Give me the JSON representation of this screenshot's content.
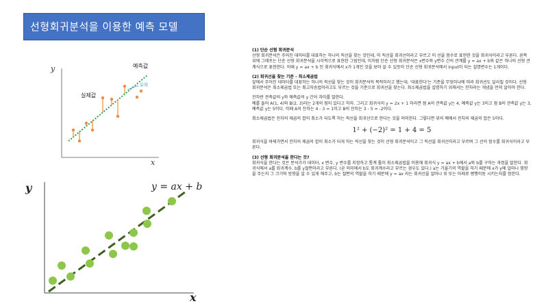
{
  "slide": {
    "title": "선형회귀분석을 이용한 예측 모델"
  },
  "fig1": {
    "y_label": "y",
    "x_label": "x",
    "predicted_label": "예측값",
    "actual_label": "실제값",
    "error_label": "오차",
    "colors": {
      "line": "#2ea043",
      "points": "#f08a3c",
      "error": "#3d9ad1",
      "axis": "#555555"
    }
  },
  "fig2": {
    "y_label": "y",
    "x_label": "x",
    "equation": "y = ax + b",
    "colors": {
      "line": "#3f5f1f",
      "points": "#8dc74a",
      "axis": "#444444"
    }
  },
  "text": {
    "s1_heading": "(1) 단순 선형 회귀분석",
    "s1_body": "선형 회귀분석은 주어진 데이터를 대표하는 하나의 직선을 찾는 것인데, 이 직선을 회귀선이라고 부르고 이 선을 함수로 표현한 것을 회귀식이라고 부른다. 왼쪽 위에 그래프는 단순 선형 회귀분석을 시각적으로 표현한 그림인데, 이처럼 단순 선형 회귀분석은 x변수와 y변수 간의 관계를 y = ax + b와 같은 하나의 선형 관계식으로 표현한다. 이때 y = ax + b 인 회귀식에서 x가 1개인 것을 보아 알 수 있듯이 단순 선형 회귀분석에서 input이 되는 설명변수는 1개이다.",
    "s2_heading": "(2) 회귀선을 찾는 기준 - 최소제곱법",
    "s2_body1": "앞에서 주어진 데이터를 대표하는 하나의 직선을 찾는 것이 회귀분석의 목적이라고 했는데, '대표한다'는 기준을 무엇이냐에 따라 회귀선도 달라질 것이다. 선형 회귀분석은 최소제곱법 또는 최고자승법이라고도 부르는 것을 기준으로 회귀선을 찾는다. 최소제곱법을 설명하기 위해서는 잔차라는 개념을 먼저 알아야 한다.",
    "s2_body2": "잔차란 관측값의 y와 예측값의 y 간의 차이를 말한다.",
    "s2_body3": "예를 들어 A(1, 4)와 B(2, 3)라는 2개의 점이 있다고 하자. 그리고 회귀식이 y = 2x + 1 이라면 점 A의 관측값 y는 4, 예측값 y는 3이고 점 B의 관측값 y는 3, 예측값 y는 5이다. 이때 A의 잔차는 4 - 3 = 1이고 B의 잔차는 3 - 5 = -2이다.",
    "s2_body4": "최소제곱법은 잔차의 제곱의 합이 최소가 되도록 하는 직선을 회귀선으로 한다는 것을 의미한다. 그렇다면 위의 예에서 잔차의 제곱의 합은 5이다.",
    "equation": "1² + (−2)² = 1 + 4 = 5",
    "s2_body5": "회귀식을 바꿔가면서 잔차의 제곱의 합이 최소가 되게 하는 직선을 찾는 것이 선형 회귀분석이고 그 직선을 회귀선이라고 부르며 그 선의 함수를 회귀식이라고 부른다.",
    "s3_heading": "(3) 선형 회귀분석을 한다는 것?",
    "s3_body": "회귀식을 한다는 것은 분석가가 데이터, x 변수, y 변수를 지정하고 통계 툴이 최소제곱법을 이용해 회귀식 y = ax + b에서 a와 b를 구하는 과정을 말한다. 회귀식에서 a를 회귀계수, b를 y절편이라고 부른다. (곧 의미에서 b도 회귀계수라고 부르는 경우도 있다.) a는 기울기의 역할을 하기 때문에 x가 y에 얼마나 영향을 주는지 그 크기와 방향을 알 수 있게 해주고, b는 절편의 역할을 하기 때문에 y = ax 라는 회귀선을 얼마나 위 또는 아래로 평행이동 시키는지를 정한다."
  }
}
